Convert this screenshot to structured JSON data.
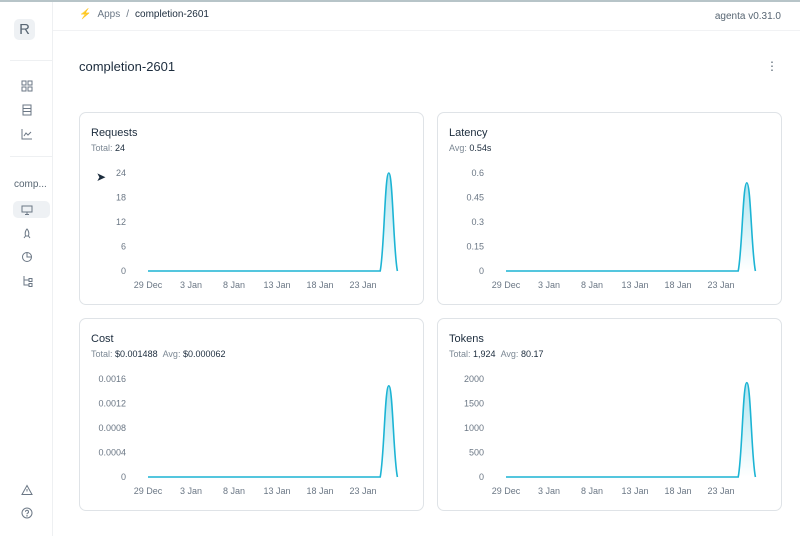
{
  "sidebar": {
    "logo": "R",
    "app_label": "comp...",
    "icons": [
      "grid-icon",
      "table-icon",
      "chart-icon",
      "monitor-icon",
      "rocket-icon",
      "evaluation-icon",
      "tree-icon",
      "alert-icon",
      "help-icon"
    ]
  },
  "breadcrumb": {
    "root": "Apps",
    "separator": "/",
    "current": "completion-2601"
  },
  "version": "agenta v0.31.0",
  "page": {
    "title": "completion-2601",
    "more": "⋮"
  },
  "accent": "#1cb4d4",
  "chart_data": [
    {
      "type": "area",
      "title": "Requests",
      "summary": [
        {
          "label": "Total:",
          "value": "24"
        }
      ],
      "x": [
        "29 Dec",
        "3 Jan",
        "8 Jan",
        "13 Jan",
        "18 Jan",
        "23 Jan"
      ],
      "peak": {
        "zero_before": "25 Jan",
        "peak_date": "26 Jan",
        "zero_after": "27 Jan",
        "value": 24
      },
      "yticks": [
        "0",
        "6",
        "12",
        "18",
        "24"
      ],
      "ylim": [
        0,
        24
      ]
    },
    {
      "type": "area",
      "title": "Latency",
      "summary": [
        {
          "label": "Avg:",
          "value": "0.54s"
        }
      ],
      "x": [
        "29 Dec",
        "3 Jan",
        "8 Jan",
        "13 Jan",
        "18 Jan",
        "23 Jan"
      ],
      "peak": {
        "zero_before": "25 Jan",
        "peak_date": "26 Jan",
        "zero_after": "27 Jan",
        "value": 0.54
      },
      "yticks": [
        "0",
        "0.15",
        "0.3",
        "0.45",
        "0.6"
      ],
      "ylim": [
        0,
        0.6
      ]
    },
    {
      "type": "area",
      "title": "Cost",
      "summary": [
        {
          "label": "Total:",
          "value": "$0.001488"
        },
        {
          "label": "Avg:",
          "value": "$0.000062"
        }
      ],
      "x": [
        "29 Dec",
        "3 Jan",
        "8 Jan",
        "13 Jan",
        "18 Jan",
        "23 Jan"
      ],
      "peak": {
        "zero_before": "25 Jan",
        "peak_date": "26 Jan",
        "zero_after": "27 Jan",
        "value": 0.001488
      },
      "yticks": [
        "0",
        "0.0004",
        "0.0008",
        "0.0012",
        "0.0016"
      ],
      "ylim": [
        0,
        0.0016
      ]
    },
    {
      "type": "area",
      "title": "Tokens",
      "summary": [
        {
          "label": "Total:",
          "value": "1,924"
        },
        {
          "label": "Avg:",
          "value": "80.17"
        }
      ],
      "x": [
        "29 Dec",
        "3 Jan",
        "8 Jan",
        "13 Jan",
        "18 Jan",
        "23 Jan"
      ],
      "peak": {
        "zero_before": "25 Jan",
        "peak_date": "26 Jan",
        "zero_after": "27 Jan",
        "value": 1924
      },
      "yticks": [
        "0",
        "500",
        "1000",
        "1500",
        "2000"
      ],
      "ylim": [
        0,
        2000
      ]
    }
  ]
}
